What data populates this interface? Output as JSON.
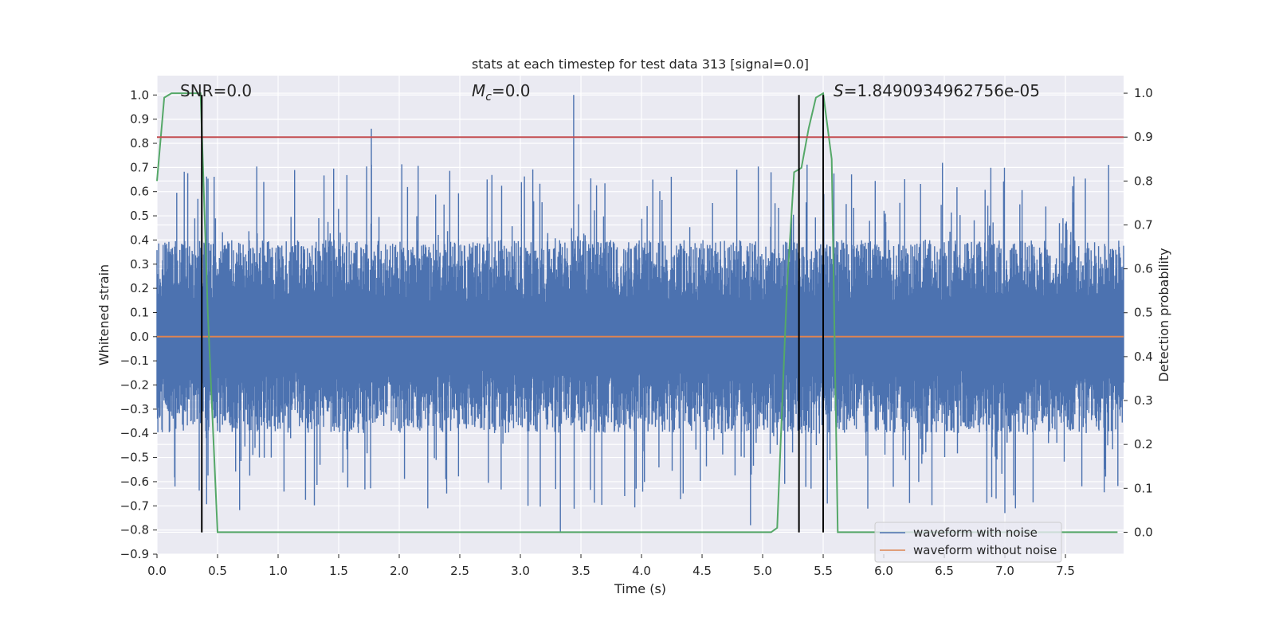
{
  "chart_data": {
    "type": "line",
    "title": "stats at each timestep for test data 313 [signal=0.0]",
    "xlabel": "Time (s)",
    "ylabel": "Whitened strain",
    "y2label": "Detection probability",
    "xlim": [
      0.0,
      7.98
    ],
    "ylim": [
      -0.9,
      1.08
    ],
    "y2lim": [
      -0.05,
      1.04
    ],
    "x_ticks": [
      0.0,
      0.5,
      1.0,
      1.5,
      2.0,
      2.5,
      3.0,
      3.5,
      4.0,
      4.5,
      5.0,
      5.5,
      6.0,
      6.5,
      7.0,
      7.5
    ],
    "x_tick_labels": [
      "0.0",
      "0.5",
      "1.0",
      "1.5",
      "2.0",
      "2.5",
      "3.0",
      "3.5",
      "4.0",
      "4.5",
      "5.0",
      "5.5",
      "6.0",
      "6.5",
      "7.0",
      "7.5"
    ],
    "y_ticks": [
      -0.9,
      -0.8,
      -0.7,
      -0.6,
      -0.5,
      -0.4,
      -0.3,
      -0.2,
      -0.1,
      0.0,
      0.1,
      0.2,
      0.3,
      0.4,
      0.5,
      0.6,
      0.7,
      0.8,
      0.9,
      1.0
    ],
    "y_tick_labels": [
      "−0.9",
      "−0.8",
      "−0.7",
      "−0.6",
      "−0.5",
      "−0.4",
      "−0.3",
      "−0.2",
      "−0.1",
      "0.0",
      "0.1",
      "0.2",
      "0.3",
      "0.4",
      "0.5",
      "0.6",
      "0.7",
      "0.8",
      "0.9",
      "1.0"
    ],
    "y2_ticks": [
      0.0,
      0.1,
      0.2,
      0.3,
      0.4,
      0.5,
      0.6,
      0.7,
      0.8,
      0.9,
      1.0
    ],
    "y2_tick_labels": [
      "0.0",
      "0.1",
      "0.2",
      "0.3",
      "0.4",
      "0.5",
      "0.6",
      "0.7",
      "0.8",
      "0.9",
      "1.0"
    ],
    "grid": true,
    "legend_position": "bottom-right",
    "series": [
      {
        "name": "waveform with noise",
        "color": "#4c72b0",
        "description_values": {
          "time_range": [
            0.0,
            7.98
          ],
          "typical_envelope": [
            -0.4,
            0.4
          ],
          "peaks": [
            {
              "x": 1.77,
              "y": 0.86
            },
            {
              "x": 3.44,
              "y": 1.0
            },
            {
              "x": 3.33,
              "y": -0.81
            },
            {
              "x": 4.9,
              "y": -0.78
            },
            {
              "x": 7.0,
              "y": -0.73
            }
          ]
        }
      },
      {
        "name": "waveform without noise",
        "color": "#dd8452",
        "x": [
          0.0,
          7.98
        ],
        "y": [
          0.0,
          0.0
        ]
      },
      {
        "name": "",
        "color": "#55a868",
        "axis": "right",
        "x": [
          0.0,
          0.06,
          0.12,
          0.2,
          0.28,
          0.36,
          0.42,
          0.5,
          0.6,
          1.0,
          2.0,
          3.0,
          4.0,
          5.0,
          5.07,
          5.12,
          5.2,
          5.26,
          5.32,
          5.38,
          5.44,
          5.5,
          5.57,
          5.62,
          5.65,
          5.7,
          6.0,
          7.0,
          7.93
        ],
        "y": [
          0.8,
          0.99,
          1.0,
          1.0,
          1.0,
          1.0,
          0.5,
          0.0,
          0.0,
          0.0,
          0.0,
          0.0,
          0.0,
          0.0,
          0.0,
          0.01,
          0.55,
          0.82,
          0.83,
          0.92,
          0.99,
          1.0,
          0.85,
          0.0,
          0.0,
          0.0,
          0.0,
          0.0,
          0.0
        ]
      },
      {
        "name": "",
        "color": "#c44e52",
        "axis": "right",
        "x": [
          0.0,
          7.98
        ],
        "y": [
          0.9,
          0.9
        ]
      }
    ],
    "vertical_markers": [
      {
        "x": 0.37,
        "ymin": -0.81,
        "ymax": 1.0,
        "color": "#000000"
      },
      {
        "x": 5.3,
        "ymin": -0.81,
        "ymax": 1.0,
        "color": "#000000"
      },
      {
        "x": 5.5,
        "ymin": -0.81,
        "ymax": 1.0,
        "color": "#000000"
      }
    ],
    "annotations": {
      "snr": {
        "prefix": "SNR",
        "value": "=0.0"
      },
      "mc": {
        "symbol": "M",
        "subscript": "c",
        "value": "=0.0"
      },
      "s": {
        "symbol": "S",
        "value": "=1.8490934962756e-05"
      }
    }
  }
}
